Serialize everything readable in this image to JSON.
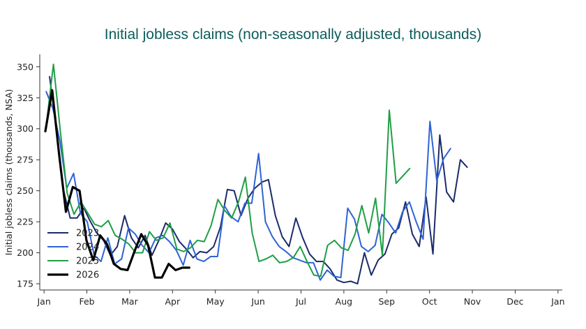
{
  "chart_data": {
    "type": "line",
    "title": "Initial jobless claims (non-seasonally adjusted, thousands)",
    "xlabel": "",
    "ylabel": "Initial jobless claims (thousands, NSA)",
    "ylim": [
      170,
      360
    ],
    "xlim": [
      -0.1,
      12.1
    ],
    "yticks": [
      175,
      200,
      225,
      250,
      275,
      300,
      325,
      350
    ],
    "xticks": [
      {
        "x": 0,
        "label": "Jan"
      },
      {
        "x": 1,
        "label": "Feb"
      },
      {
        "x": 2,
        "label": "Mar"
      },
      {
        "x": 3,
        "label": "Apr"
      },
      {
        "x": 4,
        "label": "May"
      },
      {
        "x": 5,
        "label": "Jun"
      },
      {
        "x": 6,
        "label": "Jul"
      },
      {
        "x": 7,
        "label": "Aug"
      },
      {
        "x": 8,
        "label": "Sep"
      },
      {
        "x": 9,
        "label": "Oct"
      },
      {
        "x": 10,
        "label": "Nov"
      },
      {
        "x": 11,
        "label": "Dec"
      },
      {
        "x": 12,
        "label": "Jan"
      }
    ],
    "legend_position": "bottom-left",
    "grid": false,
    "series": [
      {
        "name": "2023",
        "color": "#1b2a6b",
        "width": 2,
        "x": [
          0.13,
          0.29,
          0.45,
          0.61,
          0.77,
          0.93,
          1.07,
          1.23,
          1.39,
          1.55,
          1.71,
          1.88,
          2.04,
          2.2,
          2.36,
          2.52,
          2.68,
          2.84,
          3.0,
          3.16,
          3.32,
          3.48,
          3.64,
          3.8,
          3.96,
          4.12,
          4.28,
          4.44,
          4.6,
          4.76,
          4.92,
          5.09,
          5.24,
          5.4,
          5.56,
          5.72,
          5.88,
          6.04,
          6.2,
          6.36,
          6.52,
          6.68,
          6.84,
          7.0,
          7.16,
          7.32,
          7.48,
          7.64,
          7.8,
          7.96,
          8.12,
          8.28,
          8.44,
          8.6,
          8.76,
          8.92,
          9.08,
          9.24,
          9.4,
          9.56,
          9.72,
          9.88,
          10.04,
          10.2,
          10.36,
          10.52,
          10.68,
          10.84,
          11.0,
          11.16,
          11.32,
          11.48,
          11.64,
          11.8
        ],
        "values": [
          342,
          299,
          251,
          228,
          228,
          236,
          226,
          216,
          210,
          198,
          205,
          230,
          212,
          204,
          214,
          198,
          210,
          224,
          219,
          209,
          203,
          196,
          201,
          200,
          205,
          221,
          251,
          250,
          230,
          244,
          252,
          257,
          259,
          230,
          213,
          205,
          228,
          212,
          199,
          193,
          193,
          187,
          178,
          176,
          177,
          175,
          200,
          182,
          194,
          199,
          215,
          220,
          241,
          215,
          205,
          245,
          199,
          295,
          249,
          241,
          275,
          269,
          null,
          null,
          null,
          null,
          null,
          null,
          null,
          null,
          null,
          null,
          null,
          null
        ]
      },
      {
        "name": "2024",
        "color": "#2e63d6",
        "width": 2,
        "x": [
          0.05,
          0.21,
          0.37,
          0.53,
          0.69,
          0.85,
          1.01,
          1.17,
          1.33,
          1.49,
          1.65,
          1.81,
          1.97,
          2.13,
          2.29,
          2.45,
          2.61,
          2.77,
          2.93,
          3.09,
          3.25,
          3.41,
          3.57,
          3.73,
          3.89,
          4.05,
          4.21,
          4.37,
          4.53,
          4.69,
          4.85,
          5.01,
          5.17,
          5.33,
          5.49,
          5.65,
          5.81,
          5.97,
          6.13,
          6.29,
          6.45,
          6.61,
          6.77,
          6.93,
          7.09,
          7.25,
          7.41,
          7.57,
          7.73,
          7.89,
          8.05,
          8.21,
          8.37,
          8.53,
          8.69,
          8.85,
          9.01,
          9.17,
          9.33,
          9.49,
          9.65,
          9.81,
          9.97,
          10.13,
          10.29,
          10.45,
          10.61,
          10.77,
          10.93,
          11.09,
          11.25,
          11.41,
          11.57,
          11.73
        ],
        "values": [
          330,
          316,
          290,
          252,
          264,
          232,
          225,
          198,
          193,
          212,
          191,
          195,
          220,
          215,
          206,
          200,
          212,
          214,
          209,
          202,
          190,
          210,
          195,
          193,
          197,
          197,
          238,
          229,
          225,
          240,
          240,
          280,
          225,
          213,
          205,
          201,
          196,
          194,
          192,
          192,
          178,
          186,
          181,
          180,
          236,
          227,
          205,
          201,
          206,
          231,
          224,
          216,
          233,
          241,
          225,
          211,
          306,
          258,
          276,
          284,
          null,
          null,
          null,
          null,
          null,
          null,
          null,
          null,
          null,
          null,
          null,
          null,
          null,
          null
        ]
      },
      {
        "name": "2025",
        "color": "#1f9e45",
        "width": 2,
        "x": [
          0.06,
          0.22,
          0.38,
          0.54,
          0.7,
          0.86,
          1.02,
          1.18,
          1.34,
          1.5,
          1.66,
          1.82,
          1.98,
          2.14,
          2.3,
          2.46,
          2.62,
          2.78,
          2.94,
          3.1,
          3.26,
          3.42,
          3.58,
          3.74,
          3.9,
          4.06,
          4.22,
          4.38,
          4.54,
          4.7,
          4.86,
          5.02,
          5.18,
          5.34,
          5.5,
          5.66,
          5.82,
          5.98,
          6.14,
          6.3,
          6.46,
          6.62,
          6.78,
          6.94,
          7.1,
          7.26,
          7.42,
          7.58,
          7.74,
          7.9,
          8.06,
          8.22,
          8.38,
          8.54,
          8.7,
          8.86,
          9.02,
          9.18,
          9.34,
          9.5,
          9.66,
          9.82,
          9.98,
          10.14,
          10.3,
          10.46,
          10.62
        ],
        "values": [
          305,
          352,
          298,
          248,
          231,
          241,
          232,
          223,
          221,
          226,
          214,
          211,
          207,
          200,
          200,
          217,
          210,
          212,
          224,
          203,
          201,
          204,
          210,
          209,
          222,
          243,
          234,
          228,
          241,
          261,
          216,
          193,
          195,
          198,
          192,
          193,
          196,
          205,
          193,
          182,
          181,
          206,
          210,
          204,
          202,
          215,
          238,
          216,
          244,
          198,
          315,
          256,
          262,
          268,
          null,
          null,
          null,
          null,
          null,
          null,
          null,
          null,
          null,
          null,
          null,
          null,
          null
        ]
      },
      {
        "name": "2026",
        "color": "#000000",
        "width": 3.2,
        "x": [
          0.03,
          0.19,
          0.35,
          0.51,
          0.67,
          0.83,
          0.99,
          1.15,
          1.31,
          1.47,
          1.63,
          1.79,
          1.95,
          2.11,
          2.27,
          2.43,
          2.59,
          2.75,
          2.91,
          3.07,
          3.23,
          3.39,
          3.55,
          3.71,
          3.87,
          4.03
        ],
        "values": [
          298,
          331,
          280,
          233,
          253,
          250,
          210,
          194,
          214,
          207,
          191,
          187,
          186,
          201,
          215,
          206,
          180,
          180,
          191,
          186,
          188,
          188,
          null,
          null,
          null,
          null
        ]
      }
    ]
  }
}
